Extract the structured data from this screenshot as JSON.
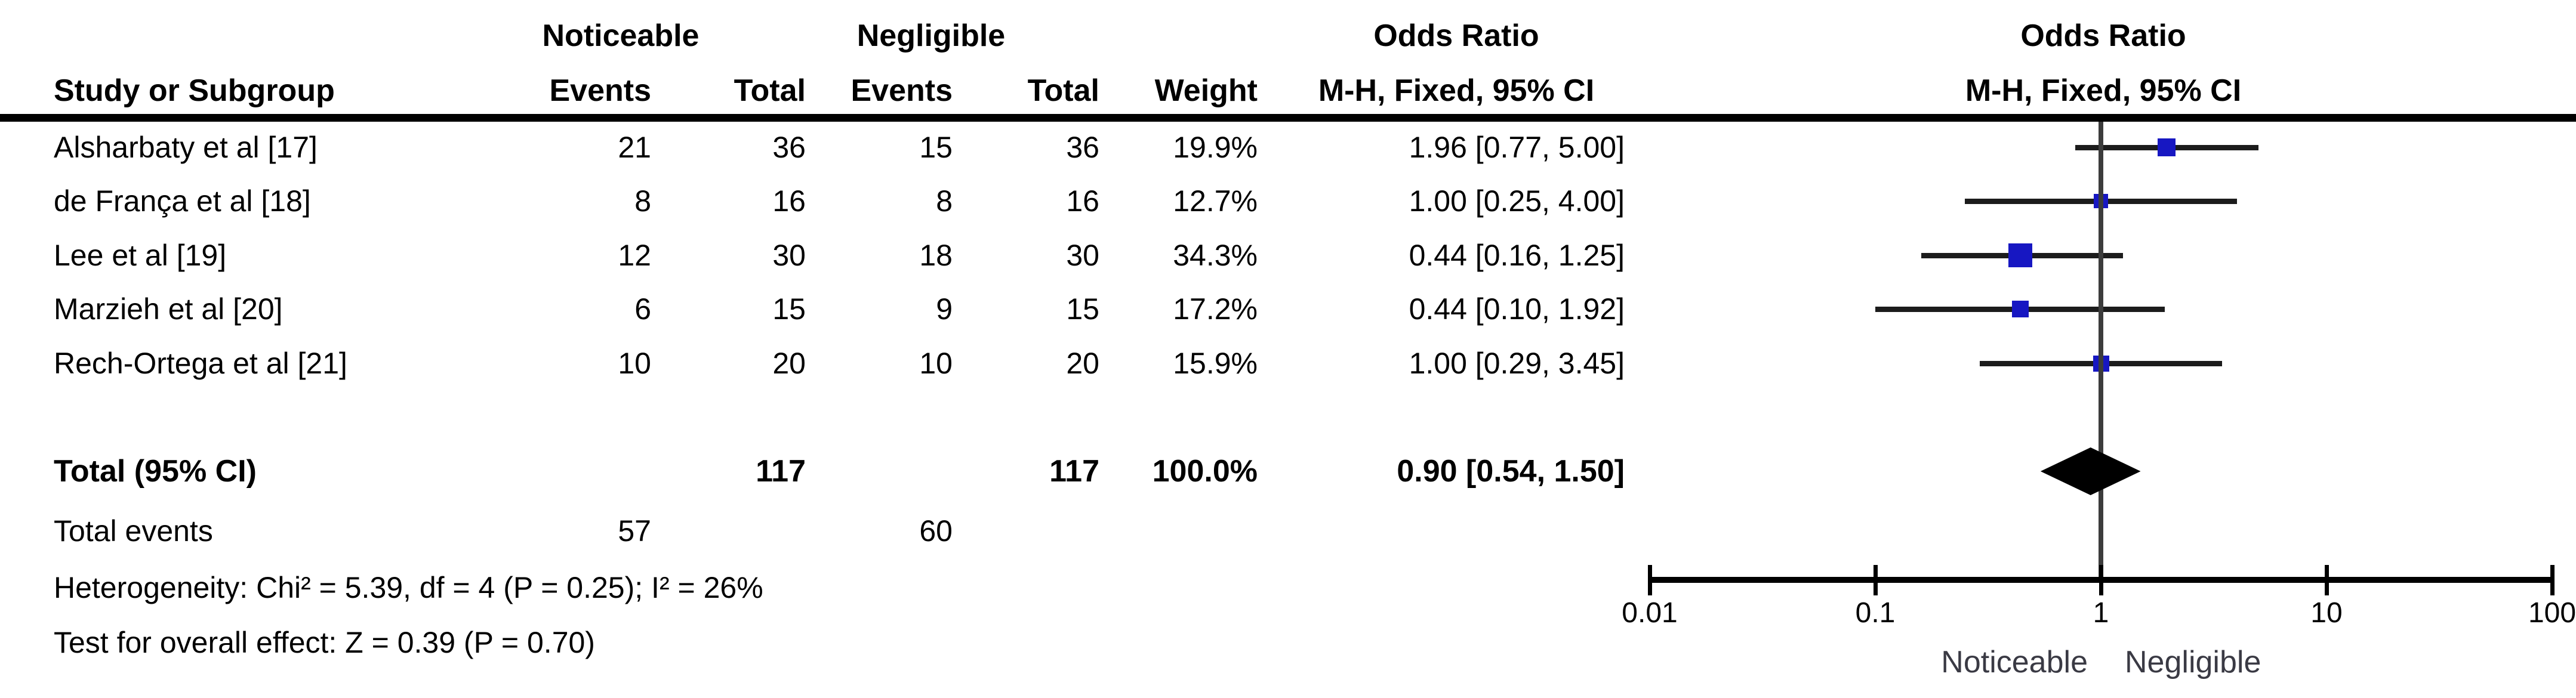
{
  "colors": {
    "marker_blue": "#1717C2",
    "ci_line": "#1c1c1c",
    "axis_black": "#000000",
    "center_line_gray": "#3c3c3c",
    "footer_axis_label_gray": "#3a3a44"
  },
  "table": {
    "header": {
      "group1": "Noticeable",
      "group2": "Negligible",
      "study": "Study or Subgroup",
      "events": "Events",
      "total": "Total",
      "weight": "Weight",
      "or_title": "Odds Ratio",
      "or_sub": "M-H, Fixed, 95% CI"
    },
    "studies": [
      {
        "name": "Alsharbaty et al [17]",
        "e1": "21",
        "t1": "36",
        "e2": "15",
        "t2": "36",
        "weight": "19.9%",
        "ci": "1.96 [0.77, 5.00]"
      },
      {
        "name": "de França et al [18]",
        "e1": "8",
        "t1": "16",
        "e2": "8",
        "t2": "16",
        "weight": "12.7%",
        "ci": "1.00 [0.25, 4.00]"
      },
      {
        "name": "Lee et al [19]",
        "e1": "12",
        "t1": "30",
        "e2": "18",
        "t2": "30",
        "weight": "34.3%",
        "ci": "0.44 [0.16, 1.25]"
      },
      {
        "name": "Marzieh et al [20]",
        "e1": "6",
        "t1": "15",
        "e2": "9",
        "t2": "15",
        "weight": "17.2%",
        "ci": "0.44 [0.10, 1.92]"
      },
      {
        "name": "Rech-Ortega et al [21]",
        "e1": "10",
        "t1": "20",
        "e2": "10",
        "t2": "20",
        "weight": "15.9%",
        "ci": "1.00 [0.29, 3.45]"
      }
    ],
    "total": {
      "label": "Total (95% CI)",
      "t1": "117",
      "t2": "117",
      "weight": "100.0%",
      "ci": "0.90 [0.54, 1.50]"
    },
    "total_events": {
      "label": "Total events",
      "e1": "57",
      "e2": "60"
    },
    "heterogeneity": "Heterogeneity: Chi² = 5.39, df = 4 (P = 0.25); I² = 26%",
    "overall_effect": "Test for overall effect: Z = 0.39 (P = 0.70)"
  },
  "plot": {
    "tick_labels": [
      "0.01",
      "0.1",
      "1",
      "10",
      "100"
    ],
    "left_label": "Noticeable",
    "right_label": "Negligible"
  },
  "chart_data": {
    "type": "forest",
    "title": "Odds Ratio  M-H, Fixed, 95% CI",
    "x_axis": {
      "scale": "log10",
      "ticks": [
        0.01,
        0.1,
        1,
        10,
        100
      ],
      "range": [
        0.01,
        100
      ],
      "null_line": 1,
      "label_left_of_1": "Noticeable",
      "label_right_of_1": "Negligible"
    },
    "groups": [
      "Noticeable",
      "Negligible"
    ],
    "studies": [
      {
        "name": "Alsharbaty et al [17]",
        "events_noticeable": 21,
        "total_noticeable": 36,
        "events_negligible": 15,
        "total_negligible": 36,
        "weight_pct": 19.9,
        "or": 1.96,
        "ci_low": 0.77,
        "ci_high": 5.0
      },
      {
        "name": "de França et al [18]",
        "events_noticeable": 8,
        "total_noticeable": 16,
        "events_negligible": 8,
        "total_negligible": 16,
        "weight_pct": 12.7,
        "or": 1.0,
        "ci_low": 0.25,
        "ci_high": 4.0
      },
      {
        "name": "Lee et al [19]",
        "events_noticeable": 12,
        "total_noticeable": 30,
        "events_negligible": 18,
        "total_negligible": 30,
        "weight_pct": 34.3,
        "or": 0.44,
        "ci_low": 0.16,
        "ci_high": 1.25
      },
      {
        "name": "Marzieh et al [20]",
        "events_noticeable": 6,
        "total_noticeable": 15,
        "events_negligible": 9,
        "total_negligible": 15,
        "weight_pct": 17.2,
        "or": 0.44,
        "ci_low": 0.1,
        "ci_high": 1.92
      },
      {
        "name": "Rech-Ortega et al [21]",
        "events_noticeable": 10,
        "total_noticeable": 20,
        "events_negligible": 10,
        "total_negligible": 20,
        "weight_pct": 15.9,
        "or": 1.0,
        "ci_low": 0.29,
        "ci_high": 3.45
      }
    ],
    "total": {
      "label": "Total (95% CI)",
      "total_noticeable": 117,
      "total_negligible": 117,
      "events_noticeable": 57,
      "events_negligible": 60,
      "weight_pct": 100.0,
      "or": 0.9,
      "ci_low": 0.54,
      "ci_high": 1.5
    },
    "heterogeneity": {
      "chi2": 5.39,
      "df": 4,
      "p": 0.25,
      "i2_pct": 26
    },
    "overall_effect": {
      "z": 0.39,
      "p": 0.7
    },
    "model": "Mantel-Haenszel fixed effect, 95% CI"
  }
}
